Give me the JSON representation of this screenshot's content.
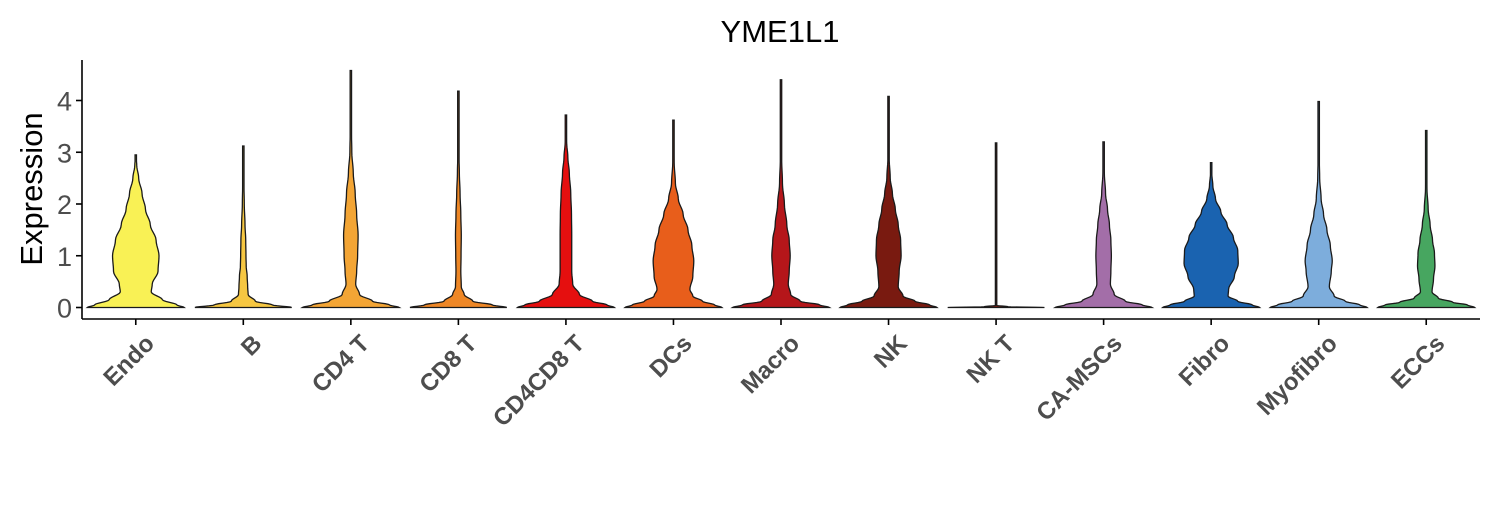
{
  "chart_data": {
    "type": "violin",
    "title": "YME1L1",
    "xlabel": "",
    "ylabel": "Expression",
    "ylim": [
      -0.25,
      4.85
    ],
    "yticks": [
      "0",
      "1",
      "2",
      "3",
      "4"
    ],
    "grid": false,
    "legend": "none",
    "categories": [
      "Endo",
      "B",
      "CD4 T",
      "CD8 T",
      "CD4CD8 T",
      "DCs",
      "Macro",
      "NK",
      "NK T",
      "CA-MSCs",
      "Fibro",
      "Myofibro",
      "ECCs"
    ],
    "series": [
      {
        "category": "Endo",
        "color": "#F9F155",
        "max": 2.95,
        "profile": [
          [
            0,
            1.0
          ],
          [
            0.05,
            0.85
          ],
          [
            0.15,
            0.55
          ],
          [
            0.3,
            0.32
          ],
          [
            0.45,
            0.34
          ],
          [
            0.7,
            0.46
          ],
          [
            1.0,
            0.48
          ],
          [
            1.3,
            0.42
          ],
          [
            1.6,
            0.3
          ],
          [
            1.9,
            0.2
          ],
          [
            2.2,
            0.13
          ],
          [
            2.5,
            0.06
          ],
          [
            2.75,
            0.02
          ],
          [
            2.95,
            0.0
          ]
        ]
      },
      {
        "category": "B",
        "color": "#F6C742",
        "max": 3.12,
        "profile": [
          [
            0,
            1.0
          ],
          [
            0.05,
            0.6
          ],
          [
            0.12,
            0.25
          ],
          [
            0.25,
            0.1
          ],
          [
            0.4,
            0.09
          ],
          [
            0.6,
            0.08
          ],
          [
            0.8,
            0.06
          ],
          [
            1.0,
            0.055
          ],
          [
            1.3,
            0.05
          ],
          [
            1.6,
            0.035
          ],
          [
            2.0,
            0.02
          ],
          [
            2.5,
            0.01
          ],
          [
            3.12,
            0.0
          ]
        ]
      },
      {
        "category": "CD4 T",
        "color": "#F3A535",
        "max": 4.58,
        "profile": [
          [
            0,
            1.0
          ],
          [
            0.05,
            0.8
          ],
          [
            0.12,
            0.45
          ],
          [
            0.25,
            0.18
          ],
          [
            0.45,
            0.1
          ],
          [
            0.7,
            0.12
          ],
          [
            1.0,
            0.14
          ],
          [
            1.4,
            0.15
          ],
          [
            1.8,
            0.12
          ],
          [
            2.2,
            0.09
          ],
          [
            2.6,
            0.05
          ],
          [
            3.0,
            0.02
          ],
          [
            3.5,
            0.01
          ],
          [
            4.0,
            0.005
          ],
          [
            4.58,
            0.0
          ]
        ]
      },
      {
        "category": "CD8 T",
        "color": "#EE8726",
        "max": 4.18,
        "profile": [
          [
            0,
            1.0
          ],
          [
            0.05,
            0.7
          ],
          [
            0.12,
            0.3
          ],
          [
            0.25,
            0.12
          ],
          [
            0.4,
            0.06
          ],
          [
            0.7,
            0.05
          ],
          [
            1.0,
            0.055
          ],
          [
            1.4,
            0.06
          ],
          [
            1.8,
            0.05
          ],
          [
            2.2,
            0.035
          ],
          [
            2.6,
            0.02
          ],
          [
            3.0,
            0.01
          ],
          [
            3.5,
            0.005
          ],
          [
            4.18,
            0.0
          ]
        ]
      },
      {
        "category": "CD4CD8 T",
        "color": "#E50F0F",
        "max": 3.72,
        "profile": [
          [
            0,
            1.0
          ],
          [
            0.05,
            0.85
          ],
          [
            0.12,
            0.55
          ],
          [
            0.25,
            0.28
          ],
          [
            0.45,
            0.14
          ],
          [
            0.7,
            0.12
          ],
          [
            1.0,
            0.12
          ],
          [
            1.4,
            0.12
          ],
          [
            1.8,
            0.115
          ],
          [
            2.2,
            0.1
          ],
          [
            2.6,
            0.07
          ],
          [
            2.9,
            0.04
          ],
          [
            3.2,
            0.015
          ],
          [
            3.72,
            0.0
          ]
        ]
      },
      {
        "category": "DCs",
        "color": "#E85E1B",
        "max": 3.62,
        "profile": [
          [
            0,
            1.0
          ],
          [
            0.05,
            0.85
          ],
          [
            0.12,
            0.6
          ],
          [
            0.22,
            0.4
          ],
          [
            0.35,
            0.34
          ],
          [
            0.6,
            0.4
          ],
          [
            0.9,
            0.42
          ],
          [
            1.2,
            0.38
          ],
          [
            1.5,
            0.3
          ],
          [
            1.8,
            0.2
          ],
          [
            2.1,
            0.1
          ],
          [
            2.4,
            0.04
          ],
          [
            2.8,
            0.015
          ],
          [
            3.62,
            0.0
          ]
        ]
      },
      {
        "category": "Macro",
        "color": "#B5161A",
        "max": 4.4,
        "profile": [
          [
            0,
            1.0
          ],
          [
            0.05,
            0.8
          ],
          [
            0.12,
            0.4
          ],
          [
            0.25,
            0.2
          ],
          [
            0.45,
            0.15
          ],
          [
            0.7,
            0.17
          ],
          [
            1.0,
            0.19
          ],
          [
            1.3,
            0.17
          ],
          [
            1.6,
            0.12
          ],
          [
            2.0,
            0.07
          ],
          [
            2.4,
            0.03
          ],
          [
            2.9,
            0.012
          ],
          [
            3.5,
            0.005
          ],
          [
            4.4,
            0.0
          ]
        ]
      },
      {
        "category": "NK",
        "color": "#791A10",
        "max": 4.08,
        "profile": [
          [
            0,
            1.0
          ],
          [
            0.05,
            0.85
          ],
          [
            0.12,
            0.55
          ],
          [
            0.22,
            0.3
          ],
          [
            0.4,
            0.2
          ],
          [
            0.7,
            0.22
          ],
          [
            1.0,
            0.26
          ],
          [
            1.3,
            0.25
          ],
          [
            1.6,
            0.2
          ],
          [
            1.9,
            0.14
          ],
          [
            2.2,
            0.08
          ],
          [
            2.5,
            0.035
          ],
          [
            2.9,
            0.012
          ],
          [
            3.4,
            0.005
          ],
          [
            4.08,
            0.0
          ]
        ]
      },
      {
        "category": "NK T",
        "color": "#791A10",
        "max": 3.18,
        "profile": [
          [
            0,
            1.0
          ],
          [
            0.015,
            0.25
          ],
          [
            0.04,
            0.01
          ],
          [
            0.5,
            0.008
          ],
          [
            1.0,
            0.007
          ],
          [
            2.0,
            0.005
          ],
          [
            3.18,
            0.0
          ]
        ]
      },
      {
        "category": "CA-MSCs",
        "color": "#A36EA8",
        "max": 3.2,
        "profile": [
          [
            0,
            1.0
          ],
          [
            0.05,
            0.8
          ],
          [
            0.12,
            0.45
          ],
          [
            0.25,
            0.22
          ],
          [
            0.45,
            0.14
          ],
          [
            0.7,
            0.15
          ],
          [
            1.0,
            0.16
          ],
          [
            1.3,
            0.15
          ],
          [
            1.6,
            0.12
          ],
          [
            1.9,
            0.08
          ],
          [
            2.2,
            0.04
          ],
          [
            2.6,
            0.015
          ],
          [
            3.2,
            0.0
          ]
        ]
      },
      {
        "category": "Fibro",
        "color": "#1A63B0",
        "max": 2.8,
        "profile": [
          [
            0,
            1.0
          ],
          [
            0.05,
            0.85
          ],
          [
            0.12,
            0.55
          ],
          [
            0.22,
            0.35
          ],
          [
            0.35,
            0.36
          ],
          [
            0.6,
            0.48
          ],
          [
            0.85,
            0.56
          ],
          [
            1.1,
            0.55
          ],
          [
            1.35,
            0.46
          ],
          [
            1.6,
            0.33
          ],
          [
            1.85,
            0.2
          ],
          [
            2.1,
            0.09
          ],
          [
            2.35,
            0.035
          ],
          [
            2.6,
            0.012
          ],
          [
            2.8,
            0.0
          ]
        ]
      },
      {
        "category": "Myofibro",
        "color": "#7DADDC",
        "max": 3.98,
        "profile": [
          [
            0,
            1.0
          ],
          [
            0.05,
            0.85
          ],
          [
            0.12,
            0.55
          ],
          [
            0.22,
            0.32
          ],
          [
            0.4,
            0.22
          ],
          [
            0.7,
            0.26
          ],
          [
            0.9,
            0.28
          ],
          [
            1.2,
            0.24
          ],
          [
            1.5,
            0.17
          ],
          [
            1.8,
            0.1
          ],
          [
            2.1,
            0.05
          ],
          [
            2.5,
            0.02
          ],
          [
            3.0,
            0.008
          ],
          [
            3.98,
            0.0
          ]
        ]
      },
      {
        "category": "ECCs",
        "color": "#47A660",
        "max": 3.42,
        "profile": [
          [
            0,
            1.0
          ],
          [
            0.05,
            0.85
          ],
          [
            0.1,
            0.55
          ],
          [
            0.18,
            0.25
          ],
          [
            0.3,
            0.12
          ],
          [
            0.55,
            0.15
          ],
          [
            0.8,
            0.18
          ],
          [
            1.05,
            0.17
          ],
          [
            1.3,
            0.13
          ],
          [
            1.6,
            0.08
          ],
          [
            1.9,
            0.04
          ],
          [
            2.3,
            0.015
          ],
          [
            2.8,
            0.005
          ],
          [
            3.42,
            0.0
          ]
        ]
      }
    ]
  }
}
